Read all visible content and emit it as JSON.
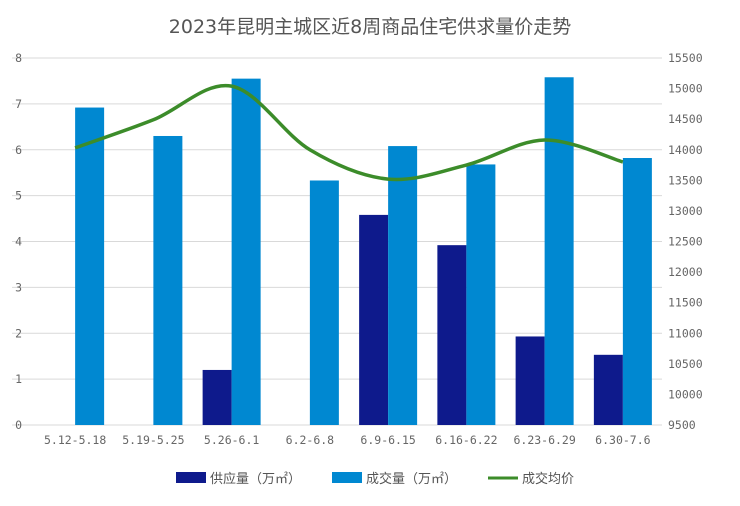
{
  "chart_data": {
    "type": "bar",
    "title": "2023年昆明主城区近8周商品住宅供求量价走势",
    "categories": [
      "5.12-5.18",
      "5.19-5.25",
      "5.26-6.1",
      "6.2-6.8",
      "6.9-6.15",
      "6.16-6.22",
      "6.23-6.29",
      "6.30-7.6"
    ],
    "series": [
      {
        "name": "供应量（万㎡）",
        "type": "bar",
        "axis": "left",
        "color": "#0e1a8c",
        "values": [
          0,
          0,
          1.2,
          0,
          4.58,
          3.92,
          1.93,
          1.53
        ]
      },
      {
        "name": "成交量（万㎡）",
        "type": "bar",
        "axis": "left",
        "color": "#0088d1",
        "values": [
          6.92,
          6.3,
          7.55,
          5.33,
          6.08,
          5.68,
          7.58,
          5.82
        ]
      },
      {
        "name": "成交均价",
        "type": "line",
        "axis": "right",
        "color": "#3c8c2a",
        "values": [
          14030,
          14490,
          15040,
          14000,
          13520,
          13750,
          14160,
          13800
        ]
      }
    ],
    "ylim": [
      0,
      8
    ],
    "y_ticks": [
      "0",
      "1",
      "2",
      "3",
      "4",
      "5",
      "6",
      "7",
      "8"
    ],
    "y2lim": [
      9500,
      15500
    ],
    "y2_ticks": [
      "9500",
      "10000",
      "10500",
      "11000",
      "11500",
      "12000",
      "12500",
      "13000",
      "13500",
      "14000",
      "14500",
      "15000",
      "15500"
    ],
    "grid": true,
    "legend": "bottom"
  }
}
